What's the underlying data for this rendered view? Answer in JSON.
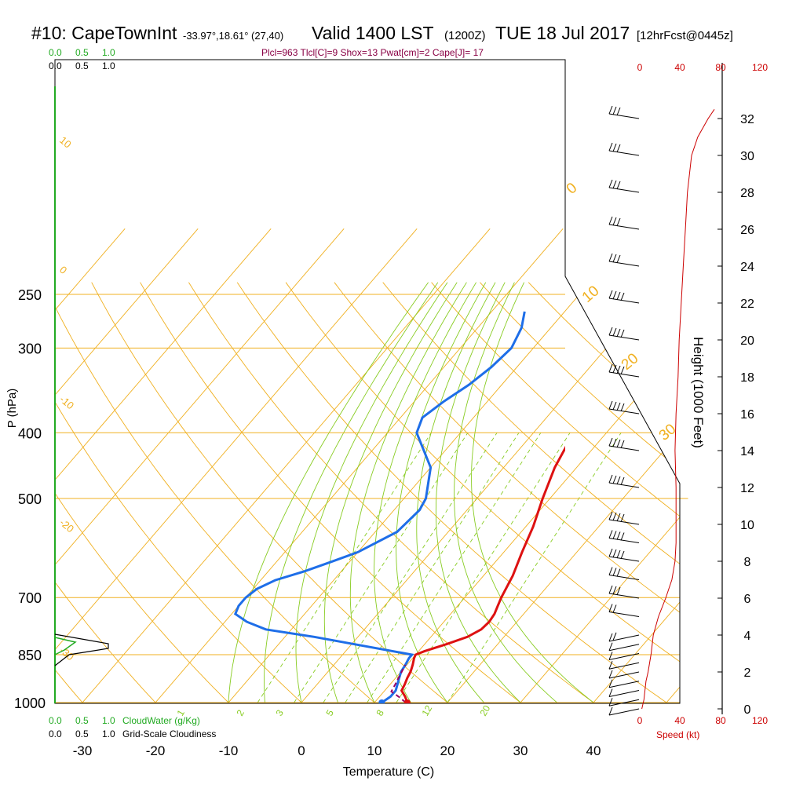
{
  "header": {
    "station": "#10: CapeTownInt",
    "coords": "-33.97°,18.61° (27,40)",
    "valid": "Valid 1400 LST",
    "utc": "(1200Z)",
    "date": "TUE 18 Jul 2017",
    "forecast": "[12hrFcst@0445z]",
    "indices": "Plcl=963 Tlcl[C]=9 Shox=13 Pwat[cm]=2 Cape[J]= 17"
  },
  "labels": {
    "pressure_axis": "P (hPa)",
    "temperature_axis": "Temperature (C)",
    "height_axis": "Height (1000 Feet)",
    "speed_axis": "Speed (kt)",
    "cloud_water": "CloudWater (g/Kg)",
    "cloudiness": "Grid-Scale Cloudiness"
  },
  "chart_data": {
    "type": "line",
    "title": "#10: CapeTownInt -33.97°,18.61° (27,40) Valid 1400 LST (1200Z) TUE 18 Jul 2017 [12hrFcst@0445z]",
    "xlabel": "Temperature (C)",
    "ylabel": "P (hPa)",
    "x_ticks": [
      "-30",
      "-20",
      "-10",
      "0",
      "10",
      "20",
      "30",
      "40"
    ],
    "y_ticks": [
      "250",
      "300",
      "400",
      "500",
      "700",
      "850",
      "1000"
    ],
    "height_ticks": [
      "0",
      "2",
      "4",
      "6",
      "8",
      "10",
      "12",
      "14",
      "16",
      "18",
      "20",
      "22",
      "24",
      "26",
      "28",
      "30",
      "32"
    ],
    "speed_ticks": [
      "0",
      "40",
      "80",
      "120"
    ],
    "cloud_ticks": [
      "0.0",
      "0.5",
      "1.0"
    ],
    "isotherm_labels": [
      "10",
      "0",
      "-10",
      "-20",
      "-30"
    ],
    "dry_adiabat_labels": [
      "0",
      "10",
      "20",
      "30"
    ],
    "mixing_ratio_labels": [
      "1",
      "2",
      "3",
      "5",
      "8",
      "12",
      "20"
    ],
    "colors": {
      "temperature": "#dd1111",
      "dewpoint": "#1e6ee8",
      "isobar_isotherm": "#f0b020",
      "moist_adiabat": "#88cc22",
      "mixing_ratio": "#88cc22",
      "cloud_water": "#22aa22",
      "speed": "#cc0000",
      "indices": "#880044"
    },
    "series": [
      {
        "name": "temperature",
        "pressure": [
          1000,
          980,
          960,
          940,
          920,
          900,
          880,
          860,
          850,
          840,
          820,
          800,
          780,
          760,
          740,
          720,
          700,
          650,
          600,
          550,
          500,
          450,
          400,
          350,
          300,
          280,
          265
        ],
        "values": [
          14.5,
          13.5,
          12.3,
          12.0,
          11.6,
          11.3,
          10.8,
          10.2,
          10.0,
          10.8,
          13.0,
          15.0,
          16.0,
          16.2,
          16.0,
          15.5,
          15.0,
          14.0,
          12.5,
          11.0,
          9.0,
          7.0,
          5.5,
          2.5,
          -1.0,
          -3.0,
          -3.5
        ]
      },
      {
        "name": "dewpoint",
        "pressure": [
          1000,
          980,
          960,
          940,
          920,
          900,
          880,
          860,
          850,
          800,
          780,
          760,
          740,
          720,
          700,
          680,
          660,
          640,
          620,
          600,
          560,
          520,
          500,
          450,
          400,
          380,
          360,
          340,
          320,
          300,
          280,
          265
        ],
        "values": [
          11.0,
          11.5,
          11.5,
          11.0,
          10.5,
          10.0,
          9.8,
          9.5,
          9.5,
          -6.0,
          -13.5,
          -17.0,
          -19.5,
          -20.0,
          -20.0,
          -19.5,
          -18.0,
          -15.0,
          -12.5,
          -10.0,
          -7.0,
          -6.5,
          -7.0,
          -10.0,
          -16.0,
          -17.0,
          -16.0,
          -14.5,
          -13.5,
          -13.0,
          -14.0,
          -15.5
        ]
      },
      {
        "name": "parcel",
        "pressure": [
          1000,
          980,
          963,
          940,
          920,
          900,
          880
        ],
        "values": [
          14.3,
          12.6,
          11.0,
          10.7,
          10.4,
          10.1,
          9.8
        ]
      }
    ],
    "wind_speed": {
      "height_kft": [
        0,
        0.5,
        1,
        1.5,
        2,
        3,
        4,
        5,
        6,
        7,
        8,
        9,
        10,
        12,
        14,
        16,
        18,
        20,
        22,
        24,
        26,
        28,
        30,
        31,
        32,
        32.5
      ],
      "speed_kt": [
        2,
        4,
        5,
        6,
        8,
        11,
        13,
        18,
        25,
        31,
        34,
        35,
        35,
        35,
        34,
        35,
        37,
        38,
        40,
        42,
        44,
        46,
        50,
        56,
        66,
        72
      ]
    },
    "wind_barbs": {
      "height_kft": [
        32,
        30,
        28,
        26,
        24,
        22,
        20,
        18,
        16,
        14,
        12,
        10,
        9,
        8,
        7,
        6,
        5,
        4,
        3.5,
        3,
        2.5,
        2,
        1.5,
        1,
        0.5,
        0
      ],
      "speed_kt": [
        30,
        30,
        30,
        30,
        30,
        35,
        35,
        35,
        35,
        35,
        35,
        35,
        35,
        35,
        30,
        25,
        20,
        15,
        12,
        10,
        10,
        10,
        8,
        5,
        5,
        3
      ]
    }
  }
}
